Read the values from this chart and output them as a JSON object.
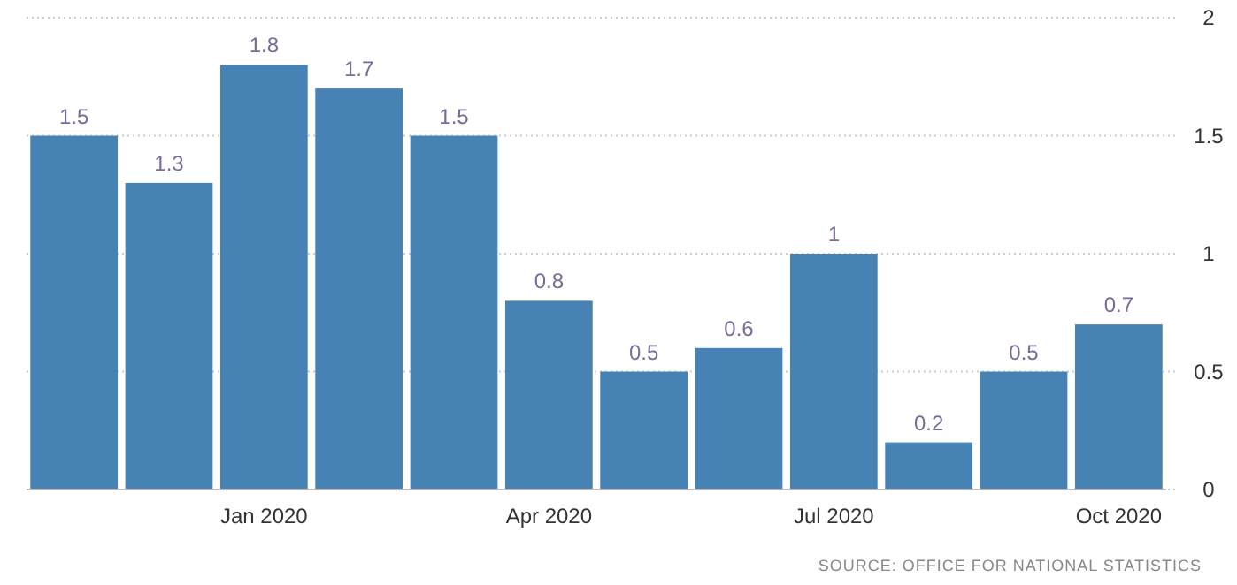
{
  "chart_data": {
    "type": "bar",
    "categories": [
      null,
      null,
      "Jan 2020",
      null,
      null,
      "Apr 2020",
      null,
      null,
      "Jul 2020",
      null,
      null,
      "Oct 2020"
    ],
    "values": [
      1.5,
      1.3,
      1.8,
      1.7,
      1.5,
      0.8,
      0.5,
      0.6,
      1,
      0.2,
      0.5,
      0.7
    ],
    "color": "#4682b4",
    "ylim": [
      0,
      2
    ],
    "yticks": [
      0,
      0.5,
      1,
      1.5,
      2
    ],
    "grid": "y",
    "data_labels": true,
    "annotations": [
      "SOURCE: OFFICE FOR NATIONAL STATISTICS"
    ]
  }
}
